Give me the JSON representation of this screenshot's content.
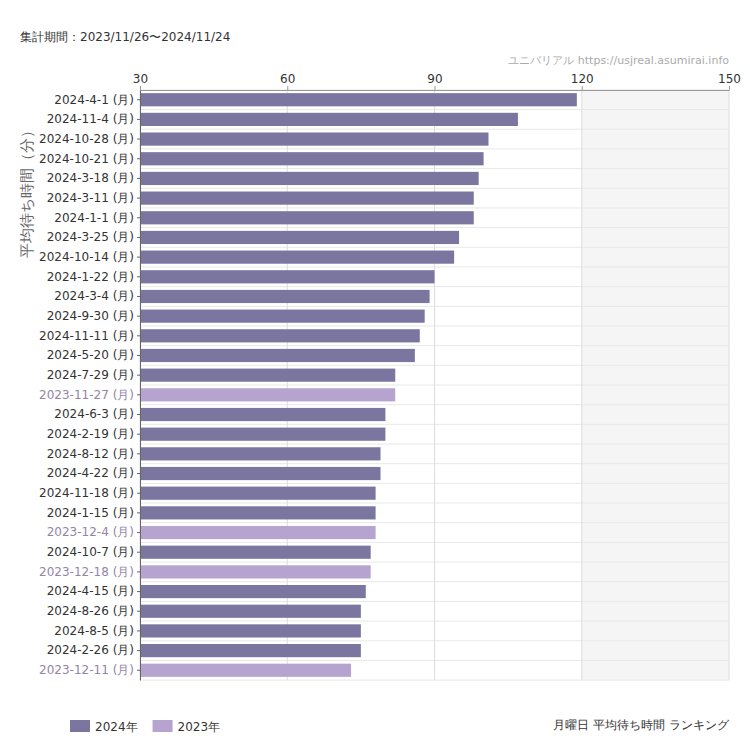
{
  "chart_data": {
    "type": "bar",
    "orientation": "horizontal",
    "title": "月曜日 平均待ち時間 ランキング",
    "subtitle": "集計期間：2023/11/26〜2024/11/24",
    "annotations": [
      "ユニバリアル  https://usjreal.asumirai.info"
    ],
    "xlabel": "平均待ち時間（分）",
    "categories": [
      "2024-4-1 (月)",
      "2024-11-4 (月)",
      "2024-10-28 (月)",
      "2024-10-21 (月)",
      "2024-3-18 (月)",
      "2024-3-11 (月)",
      "2024-1-1 (月)",
      "2024-3-25 (月)",
      "2024-10-14 (月)",
      "2024-1-22 (月)",
      "2024-3-4 (月)",
      "2024-9-30 (月)",
      "2024-11-11 (月)",
      "2024-5-20 (月)",
      "2024-7-29 (月)",
      "2023-11-27 (月)",
      "2024-6-3 (月)",
      "2024-2-19 (月)",
      "2024-8-12 (月)",
      "2024-4-22 (月)",
      "2024-11-18 (月)",
      "2024-1-15 (月)",
      "2023-12-4 (月)",
      "2024-10-7 (月)",
      "2023-12-18 (月)",
      "2024-4-15 (月)",
      "2024-8-26 (月)",
      "2024-8-5 (月)",
      "2024-2-26 (月)",
      "2023-12-11 (月)"
    ],
    "series": [
      {
        "name": "2024年",
        "color": "#7b76a0",
        "values": [
          119,
          107,
          101,
          100,
          99,
          98,
          98,
          95,
          94,
          90,
          89,
          88,
          87,
          86,
          82,
          null,
          80,
          80,
          79,
          79,
          78,
          78,
          null,
          77,
          null,
          76,
          75,
          75,
          75,
          null
        ]
      },
      {
        "name": "2023年",
        "color": "#b7a3cf",
        "values": [
          null,
          null,
          null,
          null,
          null,
          null,
          null,
          null,
          null,
          null,
          null,
          null,
          null,
          null,
          null,
          82,
          null,
          null,
          null,
          null,
          null,
          null,
          78,
          null,
          77,
          null,
          null,
          null,
          null,
          73
        ]
      }
    ],
    "xlim": [
      30,
      150
    ],
    "xticks": [
      30,
      60,
      90,
      120,
      150
    ],
    "grid": true,
    "legend": "bottom-left"
  }
}
